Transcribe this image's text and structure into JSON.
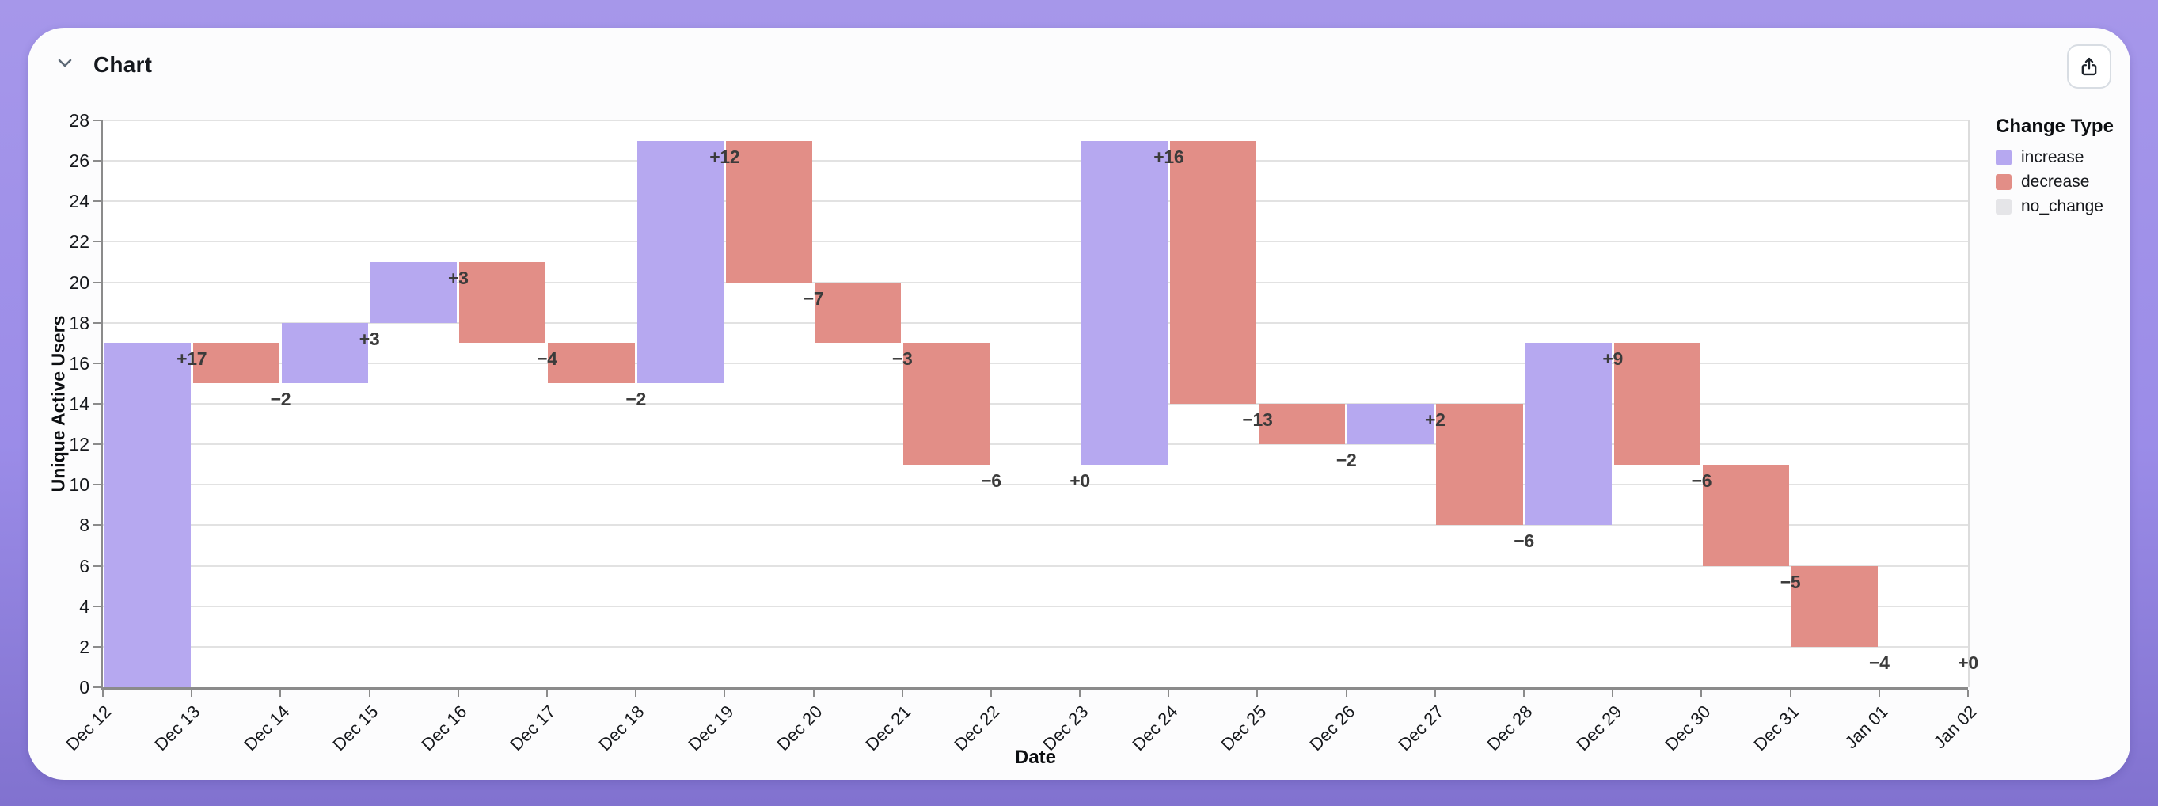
{
  "header": {
    "title": "Chart"
  },
  "colors": {
    "page_bg_top": "#a697ea",
    "page_bg_bottom": "#8172cf",
    "card_bg": "#fcfcfd",
    "increase": "#b6a8f0",
    "decrease": "#e28e87",
    "no_change": "#e5e5e8",
    "gridline": "#e2e2e2",
    "axis": "#8b8b8b",
    "value_label": "#3b3b3b"
  },
  "chart_data": {
    "type": "waterfall",
    "title": "Chart",
    "xlabel": "Date",
    "ylabel": "Unique Active Users",
    "ylim": [
      0,
      28
    ],
    "ytick_step": 2,
    "grid": true,
    "ytick_labels": [
      "0",
      "2",
      "4",
      "6",
      "8",
      "10",
      "12",
      "14",
      "16",
      "18",
      "20",
      "22",
      "24",
      "26",
      "28"
    ],
    "x_tick_labels": [
      "Dec 12",
      "Dec 13",
      "Dec 14",
      "Dec 15",
      "Dec 16",
      "Dec 17",
      "Dec 18",
      "Dec 19",
      "Dec 20",
      "Dec 21",
      "Dec 22",
      "Dec 23",
      "Dec 24",
      "Dec 25",
      "Dec 26",
      "Dec 27",
      "Dec 28",
      "Dec 29",
      "Dec 30",
      "Dec 31",
      "Jan 01",
      "Jan 02"
    ],
    "legend": {
      "title": "Change Type",
      "position": "right",
      "entries": [
        {
          "label": "increase",
          "color": "#b6a8f0"
        },
        {
          "label": "decrease",
          "color": "#e28e87"
        },
        {
          "label": "no_change",
          "color": "#e5e5e8"
        }
      ]
    },
    "bars": [
      {
        "date": "Dec 12",
        "label": "+17",
        "change": 17,
        "start": 0,
        "end": 17,
        "type": "increase"
      },
      {
        "date": "Dec 13",
        "label": "−2",
        "change": -2,
        "start": 17,
        "end": 15,
        "type": "decrease"
      },
      {
        "date": "Dec 14",
        "label": "+3",
        "change": 3,
        "start": 15,
        "end": 18,
        "type": "increase"
      },
      {
        "date": "Dec 15",
        "label": "+3",
        "change": 3,
        "start": 18,
        "end": 21,
        "type": "increase"
      },
      {
        "date": "Dec 16",
        "label": "−4",
        "change": -4,
        "start": 21,
        "end": 17,
        "type": "decrease"
      },
      {
        "date": "Dec 17",
        "label": "−2",
        "change": -2,
        "start": 17,
        "end": 15,
        "type": "decrease"
      },
      {
        "date": "Dec 18",
        "label": "+12",
        "change": 12,
        "start": 15,
        "end": 27,
        "type": "increase"
      },
      {
        "date": "Dec 19",
        "label": "−7",
        "change": -7,
        "start": 27,
        "end": 20,
        "type": "decrease"
      },
      {
        "date": "Dec 20",
        "label": "−3",
        "change": -3,
        "start": 20,
        "end": 17,
        "type": "decrease"
      },
      {
        "date": "Dec 21",
        "label": "−6",
        "change": -6,
        "start": 17,
        "end": 11,
        "type": "decrease"
      },
      {
        "date": "Dec 22",
        "label": "+0",
        "change": 0,
        "start": 11,
        "end": 11,
        "type": "no_change"
      },
      {
        "date": "Dec 23",
        "label": "+16",
        "change": 16,
        "start": 11,
        "end": 27,
        "type": "increase"
      },
      {
        "date": "Dec 24",
        "label": "−13",
        "change": -13,
        "start": 27,
        "end": 14,
        "type": "decrease"
      },
      {
        "date": "Dec 25",
        "label": "−2",
        "change": -2,
        "start": 14,
        "end": 12,
        "type": "decrease"
      },
      {
        "date": "Dec 26",
        "label": "+2",
        "change": 2,
        "start": 12,
        "end": 14,
        "type": "increase"
      },
      {
        "date": "Dec 27",
        "label": "−6",
        "change": -6,
        "start": 14,
        "end": 8,
        "type": "decrease"
      },
      {
        "date": "Dec 28",
        "label": "+9",
        "change": 9,
        "start": 8,
        "end": 17,
        "type": "increase"
      },
      {
        "date": "Dec 29",
        "label": "−6",
        "change": -6,
        "start": 17,
        "end": 11,
        "type": "decrease"
      },
      {
        "date": "Dec 30",
        "label": "−5",
        "change": -5,
        "start": 11,
        "end": 6,
        "type": "decrease"
      },
      {
        "date": "Dec 31",
        "label": "−4",
        "change": -4,
        "start": 6,
        "end": 2,
        "type": "decrease"
      },
      {
        "date": "Jan 01",
        "label": "+0",
        "change": 0,
        "start": 2,
        "end": 2,
        "type": "no_change"
      }
    ]
  }
}
